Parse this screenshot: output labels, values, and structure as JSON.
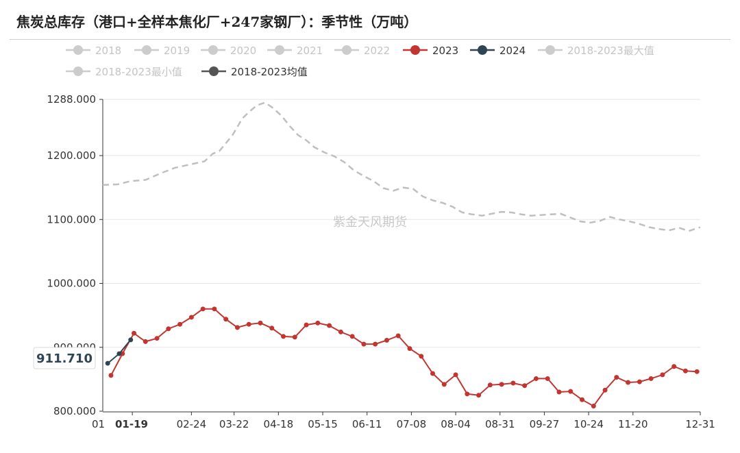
{
  "title": "焦炭总库存（港口+全样本焦化厂+247家钢厂）：季节性（万吨）",
  "watermark": "紫金天风期货",
  "tooltip_value": "911.710",
  "colors": {
    "inactive": "#cccccc",
    "s2023": "#c23531",
    "s2024": "#2f4554",
    "avg": "#555555",
    "max_line": "#bfbfbf",
    "grid": "#e6e6e6"
  },
  "legend": [
    {
      "name": "2018",
      "active": false,
      "color": "#cccccc"
    },
    {
      "name": "2019",
      "active": false,
      "color": "#cccccc"
    },
    {
      "name": "2020",
      "active": false,
      "color": "#cccccc"
    },
    {
      "name": "2021",
      "active": false,
      "color": "#cccccc"
    },
    {
      "name": "2022",
      "active": false,
      "color": "#cccccc"
    },
    {
      "name": "2023",
      "active": true,
      "color": "#c23531"
    },
    {
      "name": "2024",
      "active": true,
      "color": "#2f4554"
    },
    {
      "name": "2018-2023最大值",
      "active": false,
      "color": "#cccccc"
    },
    {
      "name": "2018-2023最小值",
      "active": false,
      "color": "#cccccc"
    },
    {
      "name": "2018-2023均值",
      "active": true,
      "color": "#555555"
    }
  ],
  "chart_data": {
    "type": "line",
    "ylim": [
      800,
      1288
    ],
    "y_ticks": [
      "1288.000",
      "1200.000",
      "1100.000",
      "1000.000",
      "900.000",
      "800.000"
    ],
    "y_tick_values": [
      1288,
      1200,
      1100,
      1000,
      900,
      800
    ],
    "x_tick_labels": [
      "01",
      "01-19",
      "02-24",
      "03-22",
      "04-18",
      "05-15",
      "06-11",
      "07-08",
      "08-04",
      "08-31",
      "09-27",
      "10-24",
      "11-20",
      "12-31"
    ],
    "x_tick_days": [
      1,
      19,
      55,
      81,
      108,
      135,
      162,
      189,
      216,
      243,
      270,
      297,
      324,
      365
    ],
    "highlight_tick": "01-19",
    "series": [
      {
        "name": "2023",
        "x_days": [
          6,
          13,
          20,
          27,
          34,
          41,
          48,
          55,
          62,
          69,
          76,
          83,
          90,
          97,
          104,
          111,
          118,
          125,
          132,
          139,
          146,
          153,
          160,
          167,
          174,
          181,
          188,
          195,
          202,
          209,
          216,
          223,
          230,
          237,
          244,
          251,
          258,
          265,
          272,
          279,
          286,
          293,
          300,
          307,
          314,
          321,
          328,
          335,
          342,
          349,
          356,
          363
        ],
        "values": [
          856,
          890,
          922,
          909,
          914,
          929,
          936,
          947,
          960,
          960,
          944,
          931,
          936,
          938,
          930,
          917,
          916,
          935,
          938,
          934,
          924,
          917,
          905,
          905,
          911,
          918,
          898,
          886,
          859,
          842,
          857,
          827,
          825,
          841,
          842,
          844,
          840,
          851,
          851,
          830,
          831,
          818,
          808,
          833,
          853,
          845,
          846,
          851,
          857,
          870,
          863,
          862
        ]
      },
      {
        "name": "2024",
        "x_days": [
          4,
          11,
          18
        ],
        "values": [
          875,
          890,
          911.71
        ]
      },
      {
        "name": "2018-2023均值",
        "style": "dashed",
        "x_days": [
          1,
          10,
          18,
          27,
          36,
          45,
          54,
          63,
          68,
          72,
          80,
          86,
          90,
          95,
          100,
          105,
          110,
          115,
          120,
          125,
          130,
          136,
          142,
          148,
          154,
          160,
          166,
          172,
          178,
          184,
          190,
          196,
          202,
          208,
          214,
          220,
          226,
          232,
          238,
          244,
          250,
          256,
          262,
          268,
          274,
          280,
          286,
          292,
          298,
          304,
          310,
          316,
          322,
          328,
          334,
          340,
          346,
          352,
          358,
          365
        ],
        "values": [
          1154,
          1155,
          1160,
          1162,
          1172,
          1181,
          1186,
          1191,
          1203,
          1207,
          1232,
          1258,
          1268,
          1279,
          1283,
          1274,
          1262,
          1246,
          1232,
          1224,
          1213,
          1205,
          1199,
          1190,
          1177,
          1168,
          1160,
          1149,
          1145,
          1150,
          1148,
          1136,
          1130,
          1126,
          1120,
          1111,
          1108,
          1106,
          1109,
          1112,
          1111,
          1108,
          1106,
          1107,
          1108,
          1109,
          1103,
          1097,
          1095,
          1098,
          1104,
          1100,
          1097,
          1093,
          1088,
          1085,
          1083,
          1087,
          1082,
          1088
        ]
      }
    ]
  }
}
